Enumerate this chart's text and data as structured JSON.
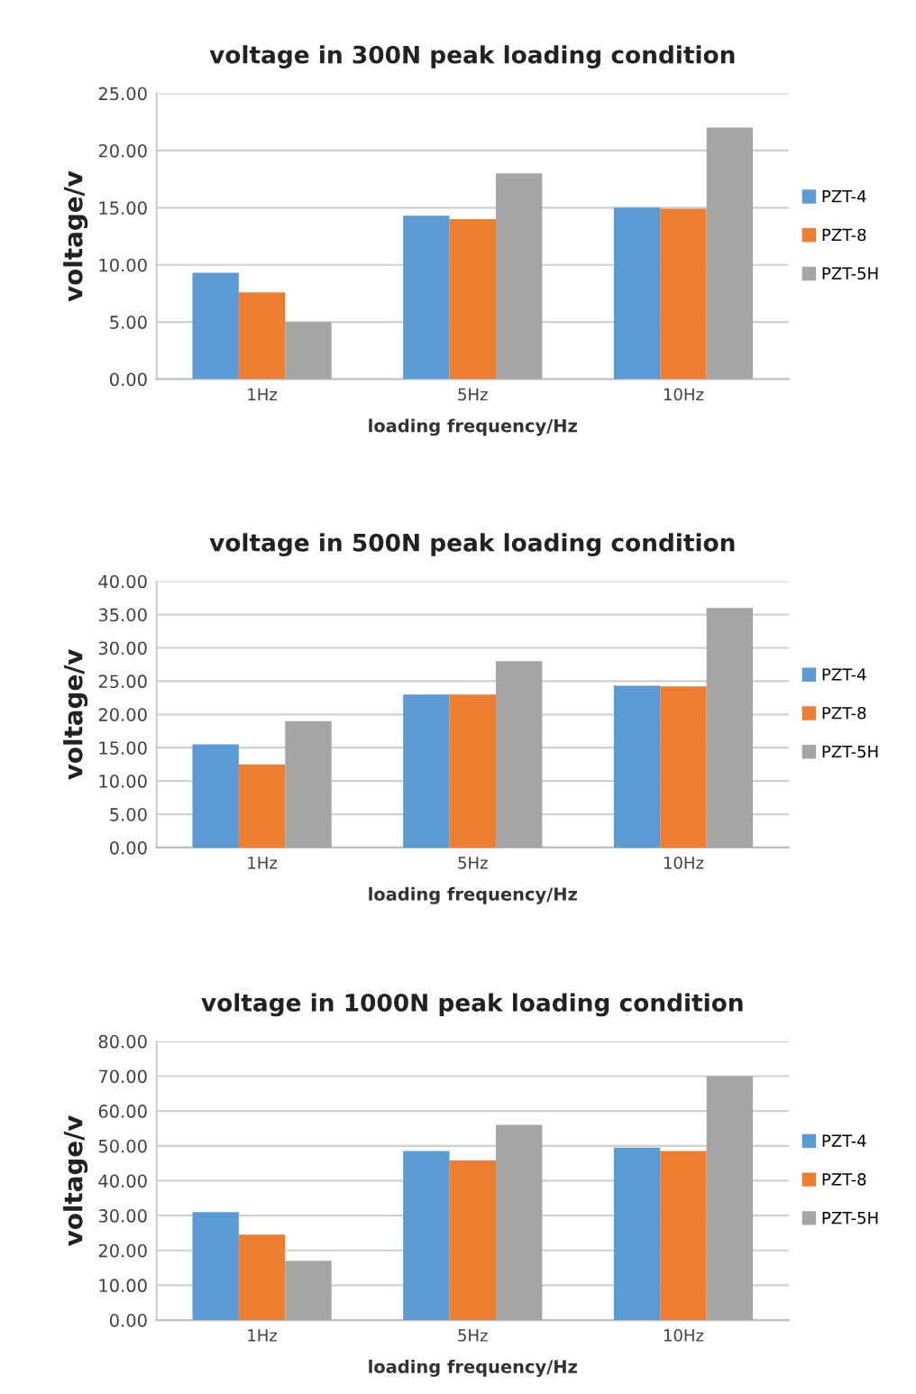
{
  "chart_data": [
    {
      "type": "bar",
      "title": "voltage in 300N peak loading condition",
      "xlabel": "loading frequency/Hz",
      "ylabel": "voltage/v",
      "categories": [
        "1Hz",
        "5Hz",
        "10Hz"
      ],
      "series": [
        {
          "name": "PZT-4",
          "color": "#5b9bd5",
          "values": [
            9.3,
            14.3,
            15.0
          ]
        },
        {
          "name": "PZT-8",
          "color": "#ed7d31",
          "values": [
            7.6,
            14.0,
            14.9
          ]
        },
        {
          "name": "PZT-5H",
          "color": "#a5a5a5",
          "values": [
            5.0,
            18.0,
            22.0
          ]
        }
      ],
      "ylim": [
        0,
        25
      ],
      "yticks": [
        {
          "value": 0,
          "label": "0.00"
        },
        {
          "value": 5,
          "label": "5.00"
        },
        {
          "value": 10,
          "label": "10.00"
        },
        {
          "value": 15,
          "label": "15.00"
        },
        {
          "value": 20,
          "label": "20.00"
        },
        {
          "value": 25,
          "label": "25.00"
        }
      ],
      "grid": "y",
      "legend": "right"
    },
    {
      "type": "bar",
      "title": "voltage in 500N peak loading condition",
      "xlabel": "loading frequency/Hz",
      "ylabel": "voltage/v",
      "categories": [
        "1Hz",
        "5Hz",
        "10Hz"
      ],
      "series": [
        {
          "name": "PZT-4",
          "color": "#5b9bd5",
          "values": [
            15.5,
            23.0,
            24.3
          ]
        },
        {
          "name": "PZT-8",
          "color": "#ed7d31",
          "values": [
            12.5,
            23.0,
            24.2
          ]
        },
        {
          "name": "PZT-5H",
          "color": "#a5a5a5",
          "values": [
            19.0,
            28.0,
            36.0
          ]
        }
      ],
      "ylim": [
        0,
        40
      ],
      "yticks": [
        {
          "value": 0,
          "label": "0.00"
        },
        {
          "value": 5,
          "label": "5.00"
        },
        {
          "value": 10,
          "label": "10.00"
        },
        {
          "value": 15,
          "label": "15.00"
        },
        {
          "value": 20,
          "label": "20.00"
        },
        {
          "value": 25,
          "label": "25.00"
        },
        {
          "value": 30,
          "label": "30.00"
        },
        {
          "value": 35,
          "label": "35.00"
        },
        {
          "value": 40,
          "label": "40.00"
        }
      ],
      "grid": "y",
      "legend": "right"
    },
    {
      "type": "bar",
      "title": "voltage in 1000N peak loading condition",
      "xlabel": "loading frequency/Hz",
      "ylabel": "voltage/v",
      "categories": [
        "1Hz",
        "5Hz",
        "10Hz"
      ],
      "series": [
        {
          "name": "PZT-4",
          "color": "#5b9bd5",
          "values": [
            31.0,
            48.5,
            49.5
          ]
        },
        {
          "name": "PZT-8",
          "color": "#ed7d31",
          "values": [
            24.5,
            45.8,
            48.5
          ]
        },
        {
          "name": "PZT-5H",
          "color": "#a5a5a5",
          "values": [
            17.0,
            56.0,
            70.0
          ]
        }
      ],
      "ylim": [
        0,
        80
      ],
      "yticks": [
        {
          "value": 0,
          "label": "0.00"
        },
        {
          "value": 10,
          "label": "10.00"
        },
        {
          "value": 20,
          "label": "20.00"
        },
        {
          "value": 30,
          "label": "30.00"
        },
        {
          "value": 40,
          "label": "40.00"
        },
        {
          "value": 50,
          "label": "50.00"
        },
        {
          "value": 60,
          "label": "60.00"
        },
        {
          "value": 70,
          "label": "70.00"
        },
        {
          "value": 80,
          "label": "80.00"
        }
      ],
      "grid": "y",
      "legend": "right"
    }
  ]
}
